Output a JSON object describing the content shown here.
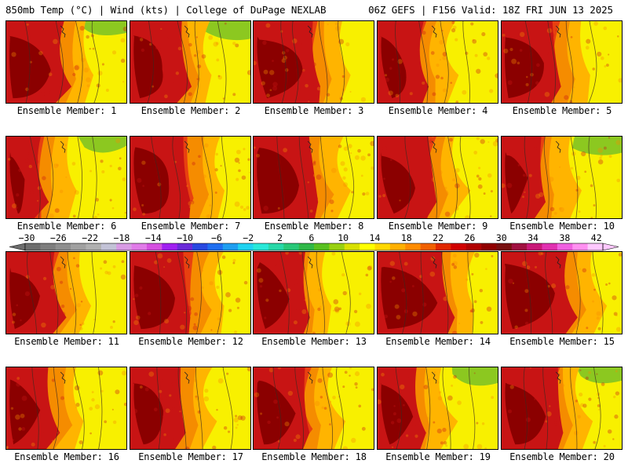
{
  "header": {
    "left_title": "850mb Temp (°C) | Wind (kts) | College of DuPage NEXLAB",
    "right_title": "06Z GEFS | F156 Valid: 18Z FRI JUN 13 2025"
  },
  "panels": [
    {
      "label": "Ensemble Member: 1",
      "hot": 0.55,
      "band": 0.45,
      "seed": 11
    },
    {
      "label": "Ensemble Member: 2",
      "hot": 0.5,
      "band": 0.42,
      "seed": 23
    },
    {
      "label": "Ensemble Member: 3",
      "hot": 0.6,
      "band": 0.5,
      "seed": 37
    },
    {
      "label": "Ensemble Member: 4",
      "hot": 0.45,
      "band": 0.38,
      "seed": 41
    },
    {
      "label": "Ensemble Member: 5",
      "hot": 0.55,
      "band": 0.48,
      "seed": 53
    },
    {
      "label": "Ensemble Member: 6",
      "hot": 0.35,
      "band": 0.3,
      "seed": 61
    },
    {
      "label": "Ensemble Member: 7",
      "hot": 0.55,
      "band": 0.5,
      "seed": 73
    },
    {
      "label": "Ensemble Member: 8",
      "hot": 0.6,
      "band": 0.5,
      "seed": 79
    },
    {
      "label": "Ensemble Member: 9",
      "hot": 0.55,
      "band": 0.45,
      "seed": 89
    },
    {
      "label": "Ensemble Member: 10",
      "hot": 0.4,
      "band": 0.35,
      "seed": 97
    },
    {
      "label": "Ensemble Member: 11",
      "hot": 0.5,
      "band": 0.42,
      "seed": 101
    },
    {
      "label": "Ensemble Member: 12",
      "hot": 0.55,
      "band": 0.52,
      "seed": 109
    },
    {
      "label": "Ensemble Member: 13",
      "hot": 0.5,
      "band": 0.4,
      "seed": 113
    },
    {
      "label": "Ensemble Member: 14",
      "hot": 0.65,
      "band": 0.55,
      "seed": 127
    },
    {
      "label": "Ensemble Member: 15",
      "hot": 0.62,
      "band": 0.55,
      "seed": 131
    },
    {
      "label": "Ensemble Member: 16",
      "hot": 0.45,
      "band": 0.38,
      "seed": 137
    },
    {
      "label": "Ensemble Member: 17",
      "hot": 0.5,
      "band": 0.42,
      "seed": 139
    },
    {
      "label": "Ensemble Member: 18",
      "hot": 0.5,
      "band": 0.45,
      "seed": 149
    },
    {
      "label": "Ensemble Member: 19",
      "hot": 0.45,
      "band": 0.35,
      "seed": 151
    },
    {
      "label": "Ensemble Member: 20",
      "hot": 0.55,
      "band": 0.45,
      "seed": 157
    }
  ],
  "colorbar": {
    "ticks": [
      "−30",
      "−26",
      "−22",
      "−18",
      "−14",
      "−10",
      "−6",
      "−2",
      "2",
      "6",
      "10",
      "14",
      "18",
      "22",
      "26",
      "30",
      "34",
      "38",
      "42"
    ],
    "colors": [
      "#6d6d6d",
      "#7d7d7d",
      "#8e8e8e",
      "#a0a0a0",
      "#b0b0b0",
      "#c2c2d6",
      "#d89be4",
      "#e07be8",
      "#d54fe0",
      "#a020f0",
      "#6a2ad8",
      "#2848e0",
      "#1e6ef0",
      "#1e9ef0",
      "#1ed2f0",
      "#28e8d8",
      "#28d8a8",
      "#28c878",
      "#30b848",
      "#58c020",
      "#98d010",
      "#d8e000",
      "#ffff00",
      "#ffd800",
      "#ffb000",
      "#ff8c00",
      "#f06000",
      "#e02800",
      "#d00000",
      "#b00000",
      "#900000",
      "#781010",
      "#a01040",
      "#c81878",
      "#e030b0",
      "#f060e0",
      "#ff90f0",
      "#ffc8ff"
    ]
  },
  "palette": {
    "dark_red": "#8b0000",
    "red": "#c81414",
    "orange_red": "#e84010",
    "orange": "#f58c00",
    "amber": "#ffb400",
    "yellow": "#ffdc00",
    "light_yellow": "#f8f000",
    "green": "#8cc820"
  }
}
